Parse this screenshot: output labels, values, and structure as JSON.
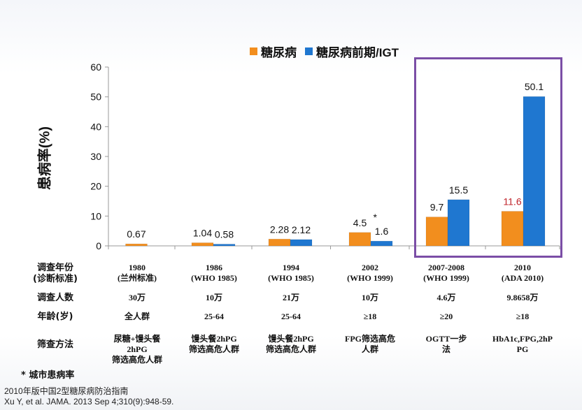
{
  "chart_data": {
    "type": "bar",
    "categories": [
      "1980",
      "1986",
      "1994",
      "2002",
      "2007-2008",
      "2010"
    ],
    "series": [
      {
        "name": "糖尿病",
        "values": [
          0.67,
          1.04,
          2.28,
          4.5,
          9.7,
          11.6
        ],
        "labels": [
          "0.67",
          "1.04",
          "2.28",
          "4.5",
          "9.7",
          "11.6"
        ],
        "label_colors": [
          "#111111",
          "#111111",
          "#111111",
          "#111111",
          "#111111",
          "#c0232a"
        ],
        "color": "#f28e1e"
      },
      {
        "name": "糖尿病前期/IGT",
        "values": [
          null,
          0.58,
          2.12,
          1.6,
          15.5,
          50.1
        ],
        "labels": [
          "",
          "0.58",
          "2.12",
          "1.6",
          "15.5",
          "50.1"
        ],
        "label_colors": [
          "#111111",
          "#111111",
          "#111111",
          "#111111",
          "#111111",
          "#111111"
        ],
        "color": "#1f77d0"
      }
    ],
    "annotations": [
      {
        "category": "2002",
        "series": "糖尿病",
        "text": "*"
      }
    ],
    "ylabel": "患病率(%)",
    "ylim": [
      0,
      60
    ],
    "yticks": [
      "0",
      "10",
      "20",
      "30",
      "40",
      "50",
      "60"
    ],
    "highlighted_categories": [
      "2007-2008",
      "2010"
    ],
    "grid": false,
    "legend_position": "top"
  },
  "table": {
    "rows": [
      {
        "label": "调查年份\n(诊断标准)",
        "cells": [
          "1980\n(兰州标准)",
          "1986\n(WHO 1985)",
          "1994\n(WHO 1985)",
          "2002\n(WHO 1999)",
          "2007-2008\n(WHO 1999)",
          "2010\n(ADA 2010)"
        ]
      },
      {
        "label": "调查人数",
        "cells": [
          "30万",
          "10万",
          "21万",
          "10万",
          "4.6万",
          "9.8658万"
        ]
      },
      {
        "label": "年龄(岁)",
        "cells": [
          "全人群",
          "25-64",
          "25-64",
          "≥18",
          "≥20",
          "≥18"
        ]
      },
      {
        "label": "筛查方法",
        "cells": [
          "尿糖+馒头餐\n2hPG\n筛选高危人群",
          "馒头餐2hPG\n筛选高危人群",
          "馒头餐2hPG\n筛选高危人群",
          "FPG筛选高危\n人群",
          "OGTT一步\n法",
          "HbA1c,FPG,2hP\nPG"
        ]
      }
    ]
  },
  "footnote": "* 城市患病率",
  "sources": [
    "2010年版中国2型糖尿病防治指南",
    "Xu Y, et al. JAMA. 2013 Sep 4;310(9):948-59."
  ]
}
